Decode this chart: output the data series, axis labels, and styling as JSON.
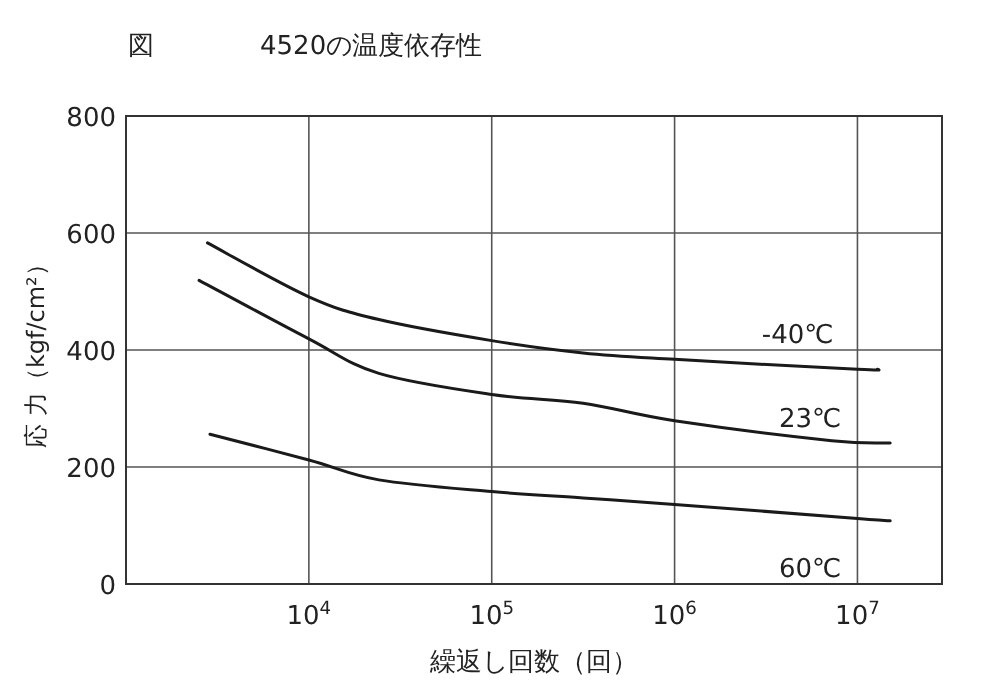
{
  "chart_data": {
    "type": "line",
    "title": "4520の温度依存性",
    "xlabel": "繰返し回数（回）",
    "ylabel": "応 力（kgf/cm²）",
    "annotations": [
      "図"
    ],
    "log": "x",
    "grid": true,
    "marker": "none",
    "line_style": "solid",
    "xlim": [
      1000,
      29000000
    ],
    "ylim": [
      0,
      800
    ],
    "xticks": [
      {
        "value": 10000,
        "label": "10$^{4}$"
      },
      {
        "value": 100000,
        "label": "10$^{5}$"
      },
      {
        "value": 1000000,
        "label": "10$^{6}$"
      },
      {
        "value": 10000000,
        "label": "10$^{7}$"
      }
    ],
    "yticks": [
      0,
      200,
      400,
      600,
      800
    ],
    "series": [
      {
        "name": "-40℃",
        "color": "#1a1a1a",
        "x": [
          2790,
          10000,
          24150,
          100000,
          316000,
          1000000,
          10000000,
          12900000
        ],
        "values": [
          583,
          491,
          452,
          416,
          395,
          384,
          367,
          367
        ]
      },
      {
        "name": "23℃",
        "color": "#1a1a1a",
        "x": [
          2510,
          10000,
          24150,
          100000,
          316000,
          1000000,
          7240000,
          15100000
        ],
        "values": [
          519,
          419,
          360,
          324,
          309,
          279,
          245,
          241
        ]
      },
      {
        "name": "60℃",
        "color": "#1a1a1a",
        "x": [
          2880,
          10000,
          24150,
          100000,
          316000,
          1000000,
          10000000,
          15100000
        ],
        "values": [
          256,
          212,
          178,
          158,
          147,
          136,
          112,
          108
        ]
      }
    ]
  }
}
